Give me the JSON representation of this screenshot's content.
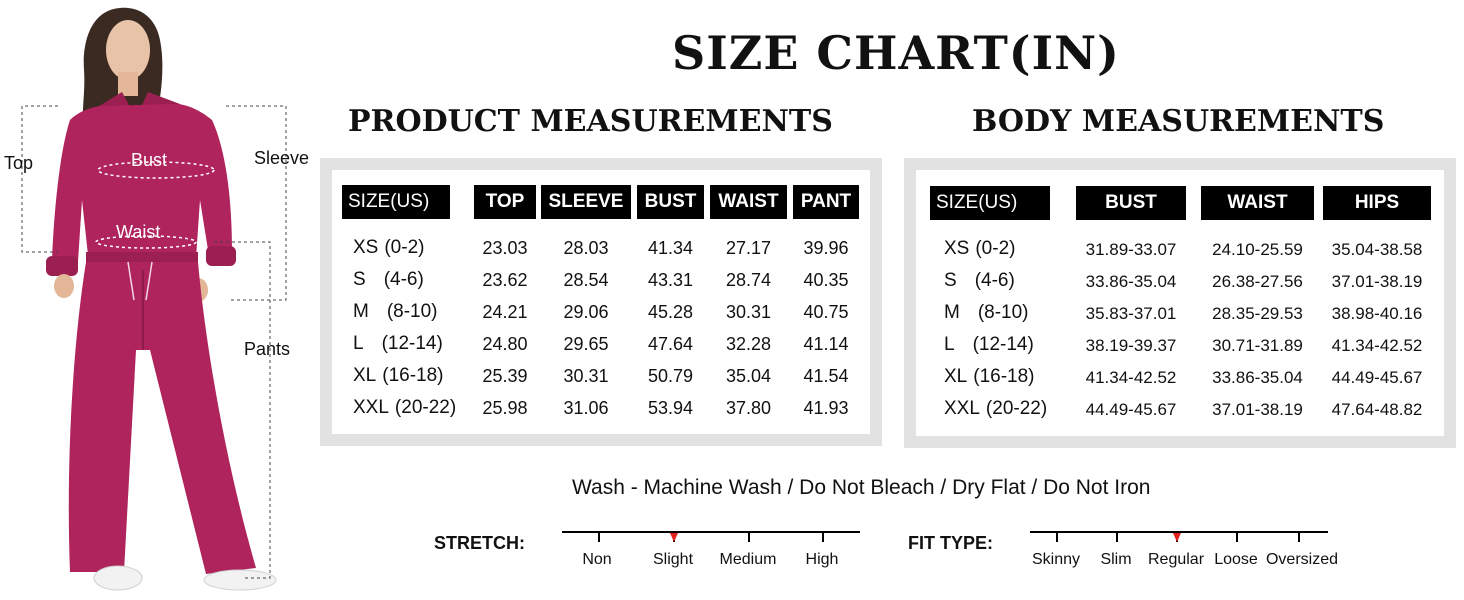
{
  "title": "SIZE CHART(IN)",
  "figure": {
    "labels": {
      "top": "Top",
      "sleeve": "Sleeve",
      "bust": "Bust",
      "waist": "Waist",
      "pants": "Pants"
    },
    "garment_color": "#b0245e"
  },
  "product": {
    "title": "PRODUCT MEASUREMENTS",
    "headers": [
      "SIZE(US)",
      "TOP",
      "SLEEVE",
      "BUST",
      "WAIST",
      "PANT"
    ],
    "rows": [
      {
        "size": "XS",
        "range": "(0-2)",
        "values": [
          "23.03",
          "28.03",
          "41.34",
          "27.17",
          "39.96"
        ]
      },
      {
        "size": "S",
        "range": "(4-6)",
        "values": [
          "23.62",
          "28.54",
          "43.31",
          "28.74",
          "40.35"
        ]
      },
      {
        "size": "M",
        "range": "(8-10)",
        "values": [
          "24.21",
          "29.06",
          "45.28",
          "30.31",
          "40.75"
        ]
      },
      {
        "size": "L",
        "range": "(12-14)",
        "values": [
          "24.80",
          "29.65",
          "47.64",
          "32.28",
          "41.14"
        ]
      },
      {
        "size": "XL",
        "range": "(16-18)",
        "values": [
          "25.39",
          "30.31",
          "50.79",
          "35.04",
          "41.54"
        ]
      },
      {
        "size": "XXL",
        "range": "(20-22)",
        "values": [
          "25.98",
          "31.06",
          "53.94",
          "37.80",
          "41.93"
        ]
      }
    ]
  },
  "body": {
    "title": "BODY MEASUREMENTS",
    "headers": [
      "SIZE(US)",
      "BUST",
      "WAIST",
      "HIPS"
    ],
    "rows": [
      {
        "size": "XS",
        "range": "(0-2)",
        "values": [
          "31.89-33.07",
          "24.10-25.59",
          "35.04-38.58"
        ]
      },
      {
        "size": "S",
        "range": "(4-6)",
        "values": [
          "33.86-35.04",
          "26.38-27.56",
          "37.01-38.19"
        ]
      },
      {
        "size": "M",
        "range": "(8-10)",
        "values": [
          "35.83-37.01",
          "28.35-29.53",
          "38.98-40.16"
        ]
      },
      {
        "size": "L",
        "range": "(12-14)",
        "values": [
          "38.19-39.37",
          "30.71-31.89",
          "41.34-42.52"
        ]
      },
      {
        "size": "XL",
        "range": "(16-18)",
        "values": [
          "41.34-42.52",
          "33.86-35.04",
          "44.49-45.67"
        ]
      },
      {
        "size": "XXL",
        "range": "(20-22)",
        "values": [
          "44.49-45.67",
          "37.01-38.19",
          "47.64-48.82"
        ]
      }
    ]
  },
  "wash": "Wash - Machine Wash / Do Not Bleach / Dry Flat / Do Not Iron",
  "stretch": {
    "title": "STRETCH:",
    "options": [
      "Non",
      "Slight",
      "Medium",
      "High"
    ],
    "selected": "Slight"
  },
  "fit": {
    "title": "FIT TYPE:",
    "options": [
      "Skinny",
      "Slim",
      "Regular",
      "Loose",
      "Oversized"
    ],
    "selected": "Regular"
  },
  "colors": {
    "marker": "#e3211c",
    "panel": "#e2e2e2",
    "header": "#000000"
  }
}
